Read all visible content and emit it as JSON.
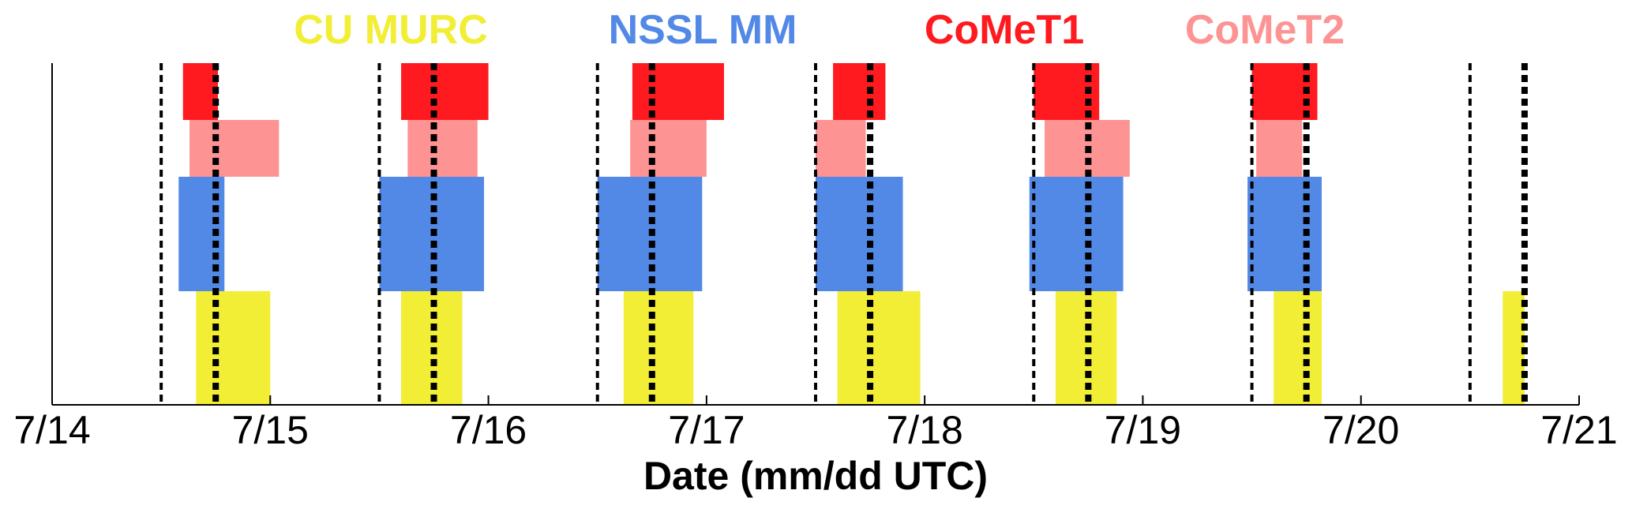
{
  "chart_data": {
    "type": "bar",
    "title": "",
    "xlabel": "Date (mm/dd UTC)",
    "ylabel": "",
    "xlim": [
      0,
      7
    ],
    "x_ticks": [
      0,
      1,
      2,
      3,
      4,
      5,
      6,
      7
    ],
    "x_tick_labels": [
      "7/14",
      "7/15",
      "7/16",
      "7/17",
      "7/18",
      "7/19",
      "7/20",
      "7/21"
    ],
    "grid": false,
    "legend_placement": "top",
    "series": [
      {
        "name": "CU MURC",
        "color": "#f2ed35",
        "row": 0,
        "intervals": [
          [
            0.66,
            1.0
          ],
          [
            1.6,
            1.88
          ],
          [
            2.62,
            2.94
          ],
          [
            3.6,
            3.98
          ],
          [
            4.6,
            4.88
          ],
          [
            5.6,
            5.82
          ],
          [
            6.65,
            6.75
          ]
        ]
      },
      {
        "name": "NSSL MM",
        "color": "#5289e6",
        "row": 1,
        "intervals": [
          [
            0.58,
            0.79
          ],
          [
            1.5,
            1.98
          ],
          [
            2.5,
            2.98
          ],
          [
            3.5,
            3.9
          ],
          [
            4.48,
            4.91
          ],
          [
            5.48,
            5.82
          ]
        ]
      },
      {
        "name": "CoMeT2",
        "color": "#fd9393",
        "row": 2,
        "intervals": [
          [
            0.63,
            1.04
          ],
          [
            1.63,
            1.95
          ],
          [
            2.65,
            3.0
          ],
          [
            3.5,
            3.73
          ],
          [
            4.55,
            4.94
          ],
          [
            5.52,
            5.73
          ]
        ]
      },
      {
        "name": "CoMeT1",
        "color": "#fe1a1e",
        "row": 3,
        "intervals": [
          [
            0.6,
            0.76
          ],
          [
            1.6,
            2.0
          ],
          [
            2.66,
            3.08
          ],
          [
            3.58,
            3.82
          ],
          [
            4.5,
            4.8
          ],
          [
            5.5,
            5.8
          ]
        ]
      }
    ],
    "vlines": {
      "thin_dashed": [
        0.5,
        1.5,
        2.5,
        3.5,
        4.5,
        5.5,
        6.5
      ],
      "thick_dashed": [
        0.75,
        1.75,
        2.75,
        3.75,
        4.75,
        5.75,
        6.75
      ]
    }
  },
  "legend": [
    {
      "label": "CU MURC",
      "color": "#f2ed35"
    },
    {
      "label": "NSSL MM",
      "color": "#5289e6"
    },
    {
      "label": "CoMeT1",
      "color": "#fe1a1e"
    },
    {
      "label": "CoMeT2",
      "color": "#fd9393"
    }
  ]
}
